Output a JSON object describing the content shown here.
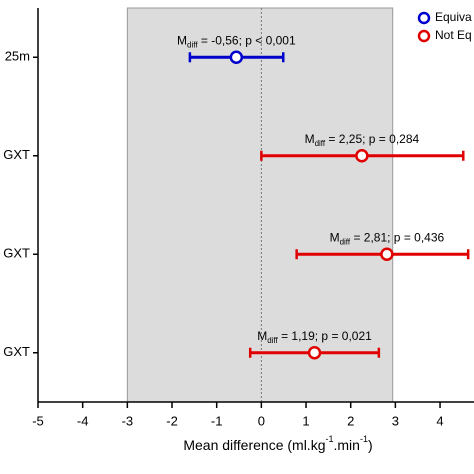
{
  "chart_data": {
    "type": "forest",
    "categories": [
      "25m",
      "GXT",
      "GXT",
      "GXT"
    ],
    "series": [
      {
        "name": "Equiva",
        "color": "#0000cc",
        "values": [
          -0.56,
          null,
          null,
          null
        ],
        "ci_low": [
          -1.6,
          null,
          null,
          null
        ],
        "ci_high": [
          0.49,
          null,
          null,
          null
        ]
      },
      {
        "name": "Not Eq",
        "color": "#e00000",
        "values": [
          null,
          2.25,
          2.81,
          1.19
        ],
        "ci_low": [
          null,
          0,
          0.79,
          -0.25
        ],
        "ci_high": [
          null,
          4.52,
          4.63,
          2.63
        ]
      }
    ],
    "annotations": [
      {
        "label": "M",
        "sub": "diff",
        "text": " = -0,56; p < 0,001"
      },
      {
        "label": "M",
        "sub": "diff",
        "text": " = 2,25; p = 0,284"
      },
      {
        "label": "M",
        "sub": "diff",
        "text": " = 2,81; p = 0,436"
      },
      {
        "label": "M",
        "sub": "diff",
        "text": " = 1,19; p = 0,021"
      }
    ],
    "x_label": {
      "parts": [
        "Mean difference (ml.kg",
        "-1",
        ".min",
        "-1",
        ")"
      ]
    },
    "equivalence_band": [
      -3,
      2.94
    ],
    "band_color": "#dcdcdc",
    "xlim": [
      -5,
      4.76
    ],
    "xticks": [
      -5,
      -4,
      -3,
      -2,
      -1,
      0,
      1,
      2,
      3,
      4
    ]
  }
}
